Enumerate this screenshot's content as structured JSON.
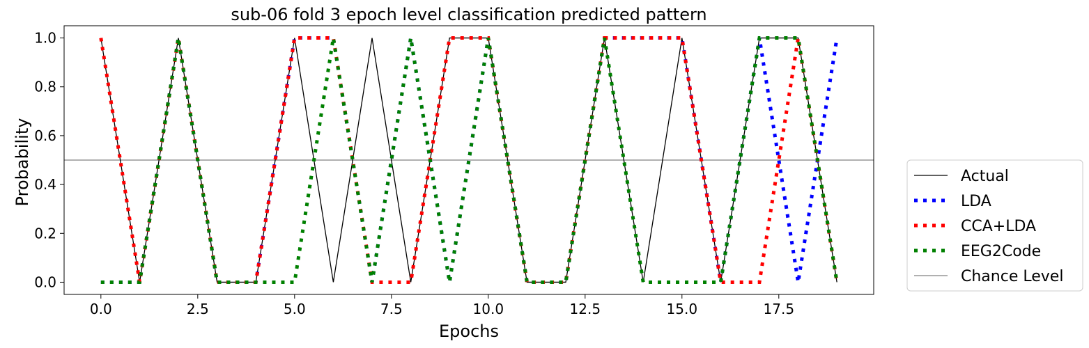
{
  "chart_data": {
    "type": "line",
    "title": "sub-06 fold 3 epoch level classification predicted pattern",
    "xlabel": "Epochs",
    "ylabel": "Probability",
    "xlim": [
      -0.95,
      19.95
    ],
    "ylim": [
      -0.05,
      1.05
    ],
    "xticks": [
      0.0,
      2.5,
      5.0,
      7.5,
      10.0,
      12.5,
      15.0,
      17.5
    ],
    "xtick_labels": [
      "0.0",
      "2.5",
      "5.0",
      "7.5",
      "10.0",
      "12.5",
      "15.0",
      "17.5"
    ],
    "yticks": [
      0.0,
      0.2,
      0.4,
      0.6,
      0.8,
      1.0
    ],
    "ytick_labels": [
      "0.0",
      "0.2",
      "0.4",
      "0.6",
      "0.8",
      "1.0"
    ],
    "grid": false,
    "legend_position": "outside-right-bottom",
    "x": [
      0,
      1,
      2,
      3,
      4,
      5,
      6,
      7,
      8,
      9,
      10,
      11,
      12,
      13,
      14,
      15,
      16,
      17,
      18,
      19
    ],
    "series": [
      {
        "name": "Actual",
        "color": "#000000",
        "style": "solid",
        "values": [
          1,
          0,
          1,
          0,
          0,
          1,
          0,
          1,
          0,
          1,
          1,
          0,
          0,
          1,
          0,
          1,
          0,
          1,
          1,
          0
        ]
      },
      {
        "name": "LDA",
        "color": "#0000ff",
        "style": "dotted",
        "values": [
          0,
          0,
          1,
          0,
          0,
          1,
          1,
          0,
          1,
          0,
          1,
          0,
          0,
          1,
          1,
          1,
          0,
          1,
          0,
          1
        ]
      },
      {
        "name": "CCA+LDA",
        "color": "#ff0000",
        "style": "dotted",
        "values": [
          1,
          0,
          1,
          0,
          0,
          1,
          1,
          0,
          0,
          1,
          1,
          0,
          0,
          1,
          1,
          1,
          0,
          0,
          1,
          0
        ]
      },
      {
        "name": "EEG2Code",
        "color": "#008000",
        "style": "dotted",
        "values": [
          0,
          0,
          1,
          0,
          0,
          0,
          1,
          0,
          1,
          0,
          1,
          0,
          0,
          1,
          0,
          0,
          0,
          1,
          1,
          0
        ]
      },
      {
        "name": "Chance Level",
        "color": "#808080",
        "style": "hline",
        "y": 0.5
      }
    ]
  }
}
